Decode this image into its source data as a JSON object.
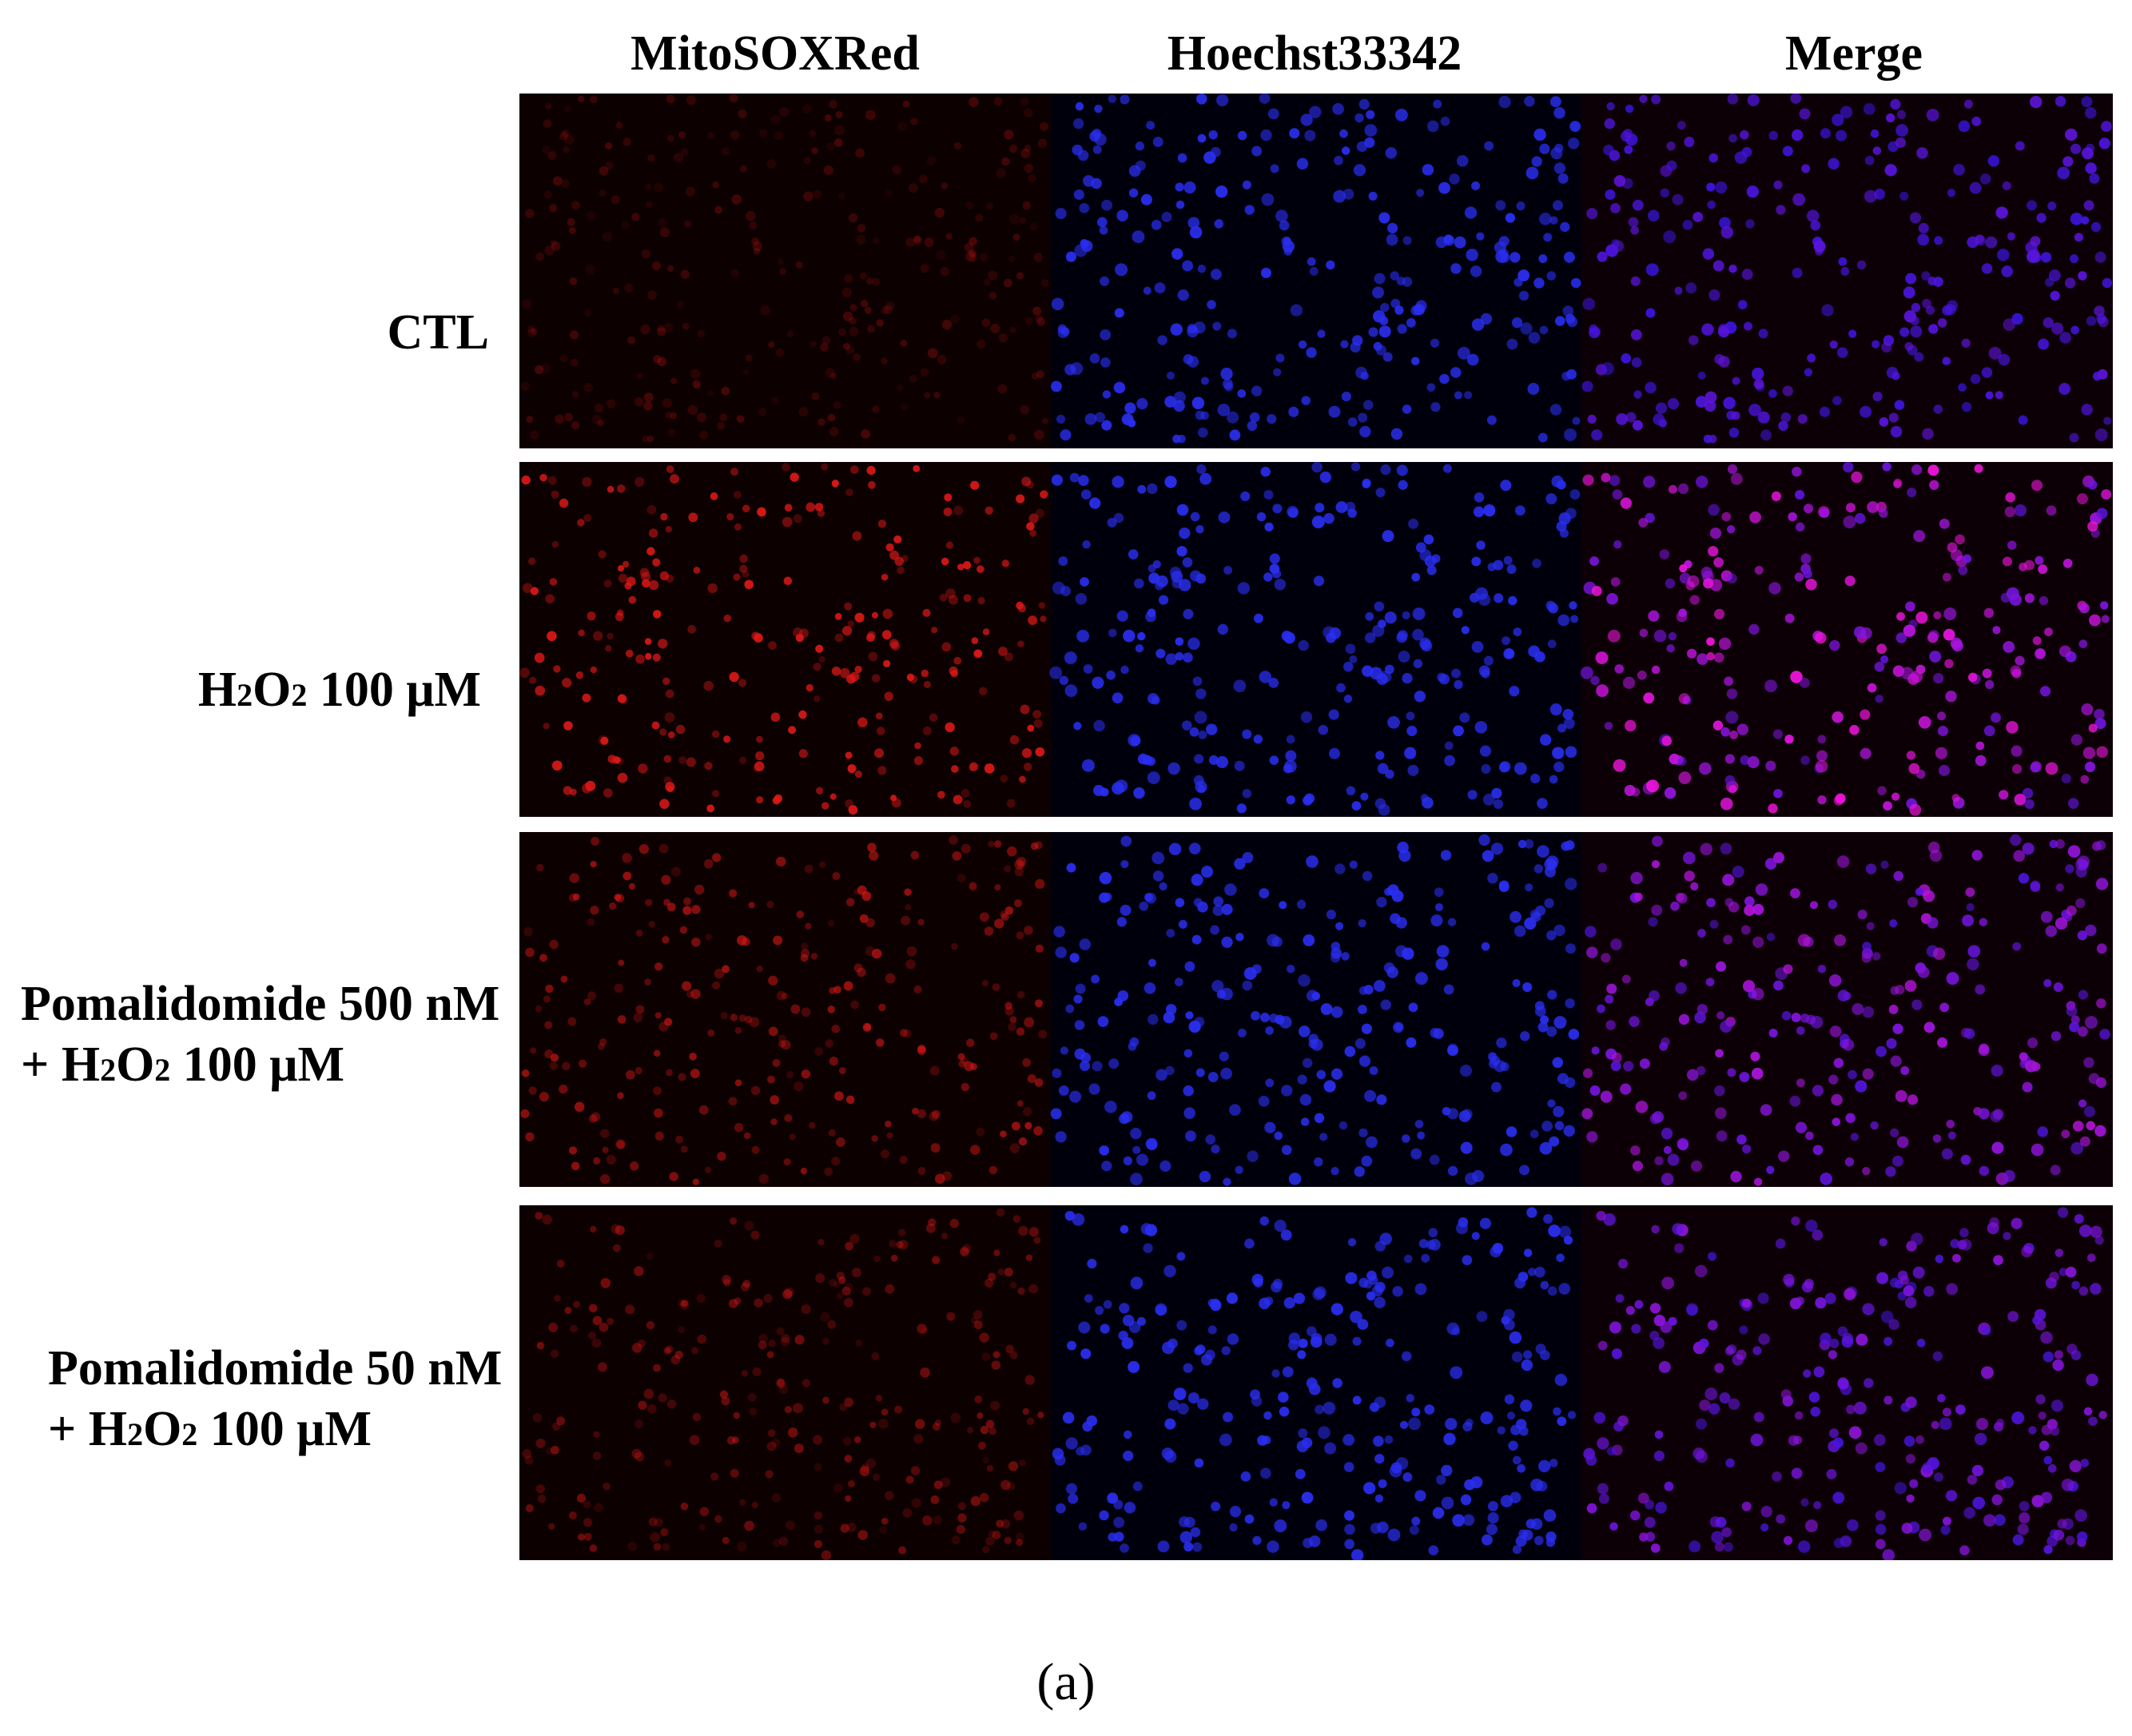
{
  "columns": [
    "MitoSOXRed",
    "Hoechst33342",
    "Merge"
  ],
  "rows": [
    {
      "lines": [
        [
          {
            "t": "CTL"
          }
        ]
      ],
      "red": 0.25
    },
    {
      "lines": [
        [
          {
            "t": "H"
          },
          {
            "t": "2",
            "sub": true
          },
          {
            "t": "O"
          },
          {
            "t": "2",
            "sub": true
          },
          {
            "t": "  100 μM"
          }
        ]
      ],
      "red": 0.9
    },
    {
      "lines": [
        [
          {
            "t": "Pomalidomide 500 nM"
          }
        ],
        [
          {
            "t": "+ H"
          },
          {
            "t": "2",
            "sub": true
          },
          {
            "t": "O"
          },
          {
            "t": "2",
            "sub": true
          },
          {
            "t": "  100 μM"
          }
        ]
      ],
      "red": 0.6
    },
    {
      "lines": [
        [
          {
            "t": "Pomalidomide 50 nM"
          }
        ],
        [
          {
            "t": "+ H"
          },
          {
            "t": "2",
            "sub": true
          },
          {
            "t": "O"
          },
          {
            "t": "2",
            "sub": true
          },
          {
            "t": "  100 μM"
          }
        ]
      ],
      "red": 0.45
    }
  ],
  "caption": "(a)",
  "colors": {
    "red_channel": "#e01818",
    "blue_channel": "#2a2ef0",
    "background": "#000000"
  }
}
